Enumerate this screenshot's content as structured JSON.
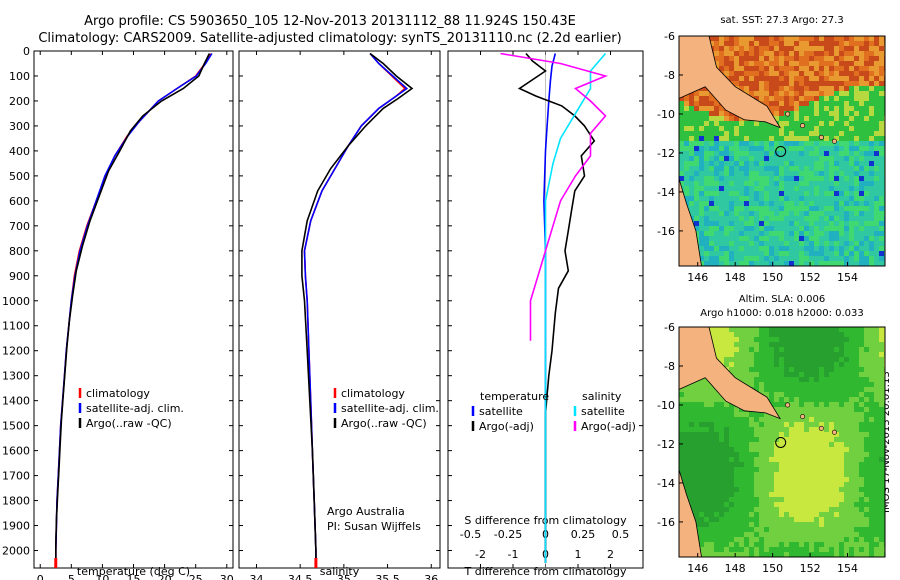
{
  "title_line1": "Argo profile: CS 5903650_105 12-Nov-2013 20131112_88 11.924S 150.43E",
  "title_line2": "Climatology: CARS2009. Satellite-adjusted climatology: synTS_20131110.nc (2.2d earlier)",
  "side_stamp": "IMOS 17-Nov-2013 20:01:13",
  "colors": {
    "climatology": "#ff0000",
    "satellite": "#0000ff",
    "argo": "#000000",
    "sal_satellite": "#00e5ff",
    "sal_argo": "#ff00ff"
  },
  "chart_data": [
    {
      "type": "line",
      "id": "temperature_profile",
      "xlabel": "temperature (deg C)",
      "xlim": [
        -1,
        31
      ],
      "ylim": [
        2070,
        0
      ],
      "x_ticks": [
        0,
        5,
        10,
        15,
        20,
        25,
        30
      ],
      "y_ticks": [
        0,
        100,
        200,
        300,
        400,
        500,
        600,
        700,
        800,
        900,
        1000,
        1100,
        1200,
        1300,
        1400,
        1500,
        1600,
        1700,
        1800,
        1900,
        2000
      ],
      "legend": [
        "climatology",
        "satellite-adj. clim.",
        "Argo(..raw -QC)"
      ],
      "series": [
        {
          "name": "climatology",
          "color": "#ff0000",
          "points": [
            [
              27.5,
              10
            ],
            [
              26.5,
              50
            ],
            [
              25,
              100
            ],
            [
              22,
              150
            ],
            [
              19,
              200
            ],
            [
              16,
              280
            ],
            [
              14,
              340
            ],
            [
              12,
              420
            ],
            [
              10.5,
              500
            ],
            [
              9,
              600
            ],
            [
              7.5,
              700
            ],
            [
              6.3,
              800
            ],
            [
              5.5,
              900
            ],
            [
              5,
              1000
            ],
            [
              4.6,
              1100
            ],
            [
              4.2,
              1200
            ],
            [
              3.9,
              1300
            ],
            [
              3.6,
              1400
            ],
            [
              3.3,
              1500
            ],
            [
              3.1,
              1600
            ],
            [
              2.9,
              1700
            ],
            [
              2.7,
              1800
            ],
            [
              2.6,
              1900
            ],
            [
              2.5,
              2000
            ],
            [
              2.5,
              2050
            ]
          ]
        },
        {
          "name": "satellite-adj. clim.",
          "color": "#0000ff",
          "points": [
            [
              27.6,
              10
            ],
            [
              26.6,
              50
            ],
            [
              25.1,
              100
            ],
            [
              22,
              150
            ],
            [
              19,
              200
            ],
            [
              16,
              280
            ],
            [
              14.1,
              340
            ],
            [
              12,
              420
            ],
            [
              10.4,
              500
            ],
            [
              9,
              600
            ],
            [
              7.6,
              700
            ],
            [
              6.4,
              800
            ],
            [
              5.6,
              900
            ],
            [
              5,
              1000
            ],
            [
              4.6,
              1100
            ],
            [
              4.2,
              1200
            ],
            [
              3.9,
              1300
            ],
            [
              3.6,
              1400
            ],
            [
              3.3,
              1500
            ],
            [
              3.1,
              1600
            ],
            [
              2.9,
              1700
            ],
            [
              2.7,
              1800
            ],
            [
              2.6,
              1900
            ],
            [
              2.5,
              2000
            ],
            [
              2.5,
              2050
            ]
          ]
        },
        {
          "name": "Argo(..raw -QC)",
          "color": "#000000",
          "points": [
            [
              27.2,
              10
            ],
            [
              26.4,
              50
            ],
            [
              25.5,
              100
            ],
            [
              23,
              150
            ],
            [
              19.5,
              200
            ],
            [
              16.5,
              260
            ],
            [
              14.5,
              320
            ],
            [
              12.8,
              400
            ],
            [
              11,
              480
            ],
            [
              9.5,
              580
            ],
            [
              8,
              680
            ],
            [
              6.8,
              780
            ],
            [
              5.8,
              880
            ],
            [
              5.2,
              980
            ],
            [
              4.7,
              1080
            ],
            [
              4.3,
              1180
            ],
            [
              4,
              1280
            ],
            [
              3.7,
              1380
            ],
            [
              3.4,
              1480
            ],
            [
              3.2,
              1580
            ],
            [
              3,
              1680
            ],
            [
              2.8,
              1780
            ],
            [
              2.6,
              1880
            ],
            [
              2.5,
              1980
            ],
            [
              2.5,
              2030
            ]
          ]
        }
      ]
    },
    {
      "type": "line",
      "id": "salinity_profile",
      "xlabel": "salinity",
      "xlim": [
        33.8,
        36.1
      ],
      "ylim": [
        2070,
        0
      ],
      "x_ticks": [
        34,
        34.5,
        35,
        35.5,
        36
      ],
      "legend": [
        "climatology",
        "satellite-adj. clim.",
        "Argo(..raw -QC)"
      ],
      "annotation": [
        "Argo Australia",
        "PI: Susan Wijffels"
      ],
      "series": [
        {
          "name": "climatology",
          "color": "#ff0000",
          "points": [
            [
              35.3,
              10
            ],
            [
              35.4,
              50
            ],
            [
              35.55,
              100
            ],
            [
              35.7,
              150
            ],
            [
              35.6,
              180
            ],
            [
              35.4,
              230
            ],
            [
              35.2,
              300
            ],
            [
              35.05,
              380
            ],
            [
              34.9,
              470
            ],
            [
              34.75,
              560
            ],
            [
              34.62,
              680
            ],
            [
              34.55,
              800
            ],
            [
              34.56,
              900
            ],
            [
              34.58,
              1000
            ],
            [
              34.6,
              1200
            ],
            [
              34.62,
              1400
            ],
            [
              34.64,
              1600
            ],
            [
              34.66,
              1800
            ],
            [
              34.68,
              2000
            ],
            [
              34.68,
              2050
            ]
          ]
        },
        {
          "name": "satellite-adj. clim.",
          "color": "#0000ff",
          "points": [
            [
              35.3,
              10
            ],
            [
              35.4,
              50
            ],
            [
              35.56,
              100
            ],
            [
              35.72,
              150
            ],
            [
              35.6,
              180
            ],
            [
              35.4,
              230
            ],
            [
              35.2,
              300
            ],
            [
              35.05,
              380
            ],
            [
              34.9,
              470
            ],
            [
              34.75,
              560
            ],
            [
              34.62,
              680
            ],
            [
              34.55,
              800
            ],
            [
              34.56,
              900
            ],
            [
              34.58,
              1000
            ],
            [
              34.6,
              1200
            ],
            [
              34.62,
              1400
            ],
            [
              34.64,
              1600
            ],
            [
              34.66,
              1800
            ],
            [
              34.68,
              2000
            ],
            [
              34.68,
              2050
            ]
          ]
        },
        {
          "name": "Argo(..raw -QC)",
          "color": "#000000",
          "points": [
            [
              35.3,
              10
            ],
            [
              35.45,
              50
            ],
            [
              35.6,
              100
            ],
            [
              35.78,
              150
            ],
            [
              35.62,
              190
            ],
            [
              35.45,
              230
            ],
            [
              35.25,
              300
            ],
            [
              35.05,
              380
            ],
            [
              34.85,
              470
            ],
            [
              34.7,
              560
            ],
            [
              34.58,
              680
            ],
            [
              34.52,
              800
            ],
            [
              34.52,
              900
            ],
            [
              34.55,
              1000
            ],
            [
              34.58,
              1200
            ],
            [
              34.61,
              1400
            ],
            [
              34.64,
              1600
            ],
            [
              34.66,
              1800
            ],
            [
              34.68,
              2000
            ],
            [
              34.68,
              2030
            ]
          ]
        }
      ]
    },
    {
      "type": "line",
      "id": "difference_profile",
      "xlabel": "T difference from climatology",
      "xlabel_top": "S difference from climatology",
      "xlim": [
        -3,
        3
      ],
      "ylim": [
        2070,
        0
      ],
      "x_ticks": [
        -2,
        -1,
        0,
        1,
        2
      ],
      "x_ticks_salinity": [
        "-0.5",
        "-0.25",
        "0",
        "0.25",
        "0.5"
      ],
      "legend_temperature": {
        "title": "temperature",
        "entries": [
          "satellite",
          "Argo(-adj)"
        ]
      },
      "legend_salinity": {
        "title": "salinity",
        "entries": [
          "satellite",
          "Argo(-adj)"
        ]
      },
      "series": [
        {
          "name": "temperature satellite",
          "color": "#0000ff",
          "points": [
            [
              0.3,
              10
            ],
            [
              0.2,
              60
            ],
            [
              0.15,
              120
            ],
            [
              0.1,
              200
            ],
            [
              0.05,
              300
            ],
            [
              0,
              400
            ],
            [
              -0.05,
              600
            ],
            [
              0,
              800
            ],
            [
              0,
              1000
            ],
            [
              0,
              1400
            ],
            [
              0,
              1800
            ],
            [
              0,
              2050
            ]
          ]
        },
        {
          "name": "temperature Argo(-adj)",
          "color": "#000000",
          "points": [
            [
              -0.6,
              10
            ],
            [
              -0.4,
              40
            ],
            [
              -0.2,
              60
            ],
            [
              0,
              80
            ],
            [
              -0.8,
              150
            ],
            [
              -0.3,
              180
            ],
            [
              0.5,
              220
            ],
            [
              0.9,
              260
            ],
            [
              1.2,
              300
            ],
            [
              1.5,
              360
            ],
            [
              1.1,
              420
            ],
            [
              1.2,
              500
            ],
            [
              0.9,
              560
            ],
            [
              0.8,
              640
            ],
            [
              0.7,
              720
            ],
            [
              0.6,
              800
            ],
            [
              0.7,
              880
            ],
            [
              0.4,
              950
            ],
            [
              0.3,
              1050
            ],
            [
              0.2,
              1200
            ],
            [
              0.1,
              1300
            ],
            [
              0,
              1450
            ],
            [
              0,
              1600
            ],
            [
              0,
              1800
            ],
            [
              0,
              2050
            ]
          ]
        },
        {
          "name": "salinity satellite",
          "color": "#00e5ff",
          "points": [
            [
              0.4,
              10
            ],
            [
              0.3,
              80
            ],
            [
              0.3,
              150
            ],
            [
              0.2,
              250
            ],
            [
              0.1,
              350
            ],
            [
              0.05,
              450
            ],
            [
              0,
              600
            ],
            [
              0,
              800
            ],
            [
              0,
              1200
            ],
            [
              0,
              1600
            ],
            [
              0,
              2050
            ]
          ]
        },
        {
          "name": "salinity Argo(-adj)",
          "color": "#ff00ff",
          "points": [
            [
              -0.3,
              10
            ],
            [
              0.1,
              50
            ],
            [
              0.4,
              100
            ],
            [
              0.2,
              150
            ],
            [
              0.3,
              200
            ],
            [
              0.4,
              260
            ],
            [
              0.3,
              330
            ],
            [
              0.3,
              420
            ],
            [
              0.2,
              500
            ],
            [
              0.1,
              600
            ],
            [
              0.05,
              700
            ],
            [
              0,
              800
            ],
            [
              -0.05,
              900
            ],
            [
              -0.1,
              1000
            ],
            [
              -0.1,
              1100
            ],
            [
              -0.1,
              1160
            ]
          ]
        }
      ]
    },
    {
      "type": "heatmap",
      "id": "sst_map",
      "title": "sat. SST: 27.3  Argo: 27.3",
      "x_ticks": [
        "146",
        "148",
        "150",
        "152",
        "154"
      ],
      "y_ticks": [
        "-6",
        "-8",
        "-10",
        "-12",
        "-14",
        "-16"
      ],
      "lon_range": [
        145,
        156
      ],
      "lat_range": [
        -17.8,
        -6
      ],
      "float_position": {
        "lon": 150.43,
        "lat": -11.924
      }
    },
    {
      "type": "heatmap",
      "id": "sla_map",
      "title_line1": "Altim. SLA: 0.006",
      "title_line2": "Argo h1000: 0.018 h2000: 0.033",
      "x_ticks": [
        "146",
        "148",
        "150",
        "152",
        "154"
      ],
      "y_ticks": [
        "-6",
        "-8",
        "-10",
        "-12",
        "-14",
        "-16"
      ],
      "lon_range": [
        145,
        156
      ],
      "lat_range": [
        -17.8,
        -6
      ],
      "float_position": {
        "lon": 150.43,
        "lat": -11.924
      }
    }
  ]
}
